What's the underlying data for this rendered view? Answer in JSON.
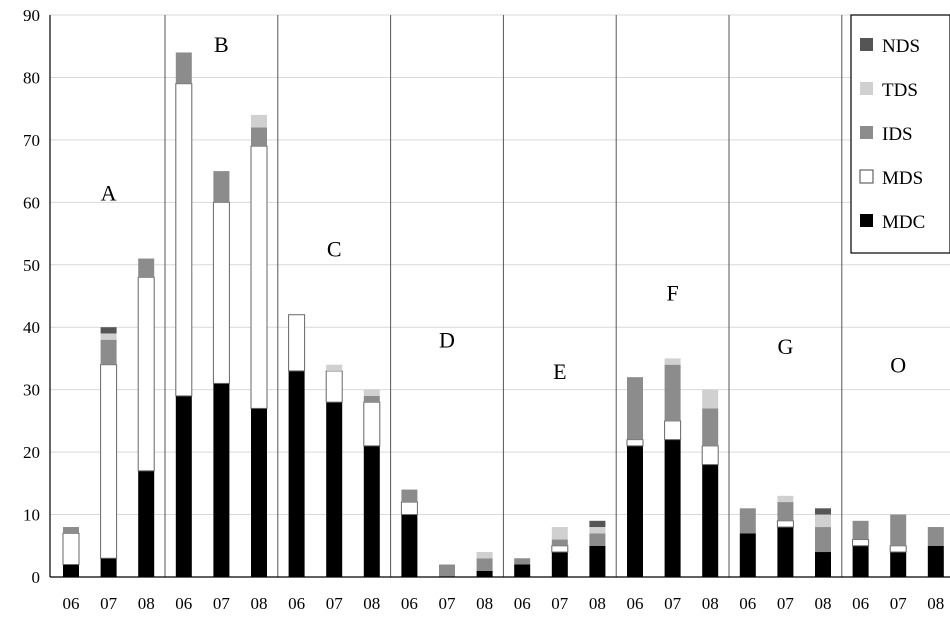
{
  "chart_data": {
    "type": "bar",
    "stacked": true,
    "title": "",
    "xlabel": "",
    "ylabel": "",
    "ylim": [
      0,
      90
    ],
    "yticks": [
      0,
      10,
      20,
      30,
      40,
      50,
      60,
      70,
      80,
      90
    ],
    "grid": "horizontal, light",
    "legend_position": "top-right",
    "series": [
      {
        "name": "MDC",
        "color": "#000000"
      },
      {
        "name": "MDS",
        "color": "#ffffff"
      },
      {
        "name": "IDS",
        "color": "#8c8c8c"
      },
      {
        "name": "TDS",
        "color": "#d0d0d0"
      },
      {
        "name": "NDS",
        "color": "#555555"
      }
    ],
    "legend_order": [
      "NDS",
      "TDS",
      "IDS",
      "MDS",
      "MDC"
    ],
    "groups": [
      {
        "label": "A",
        "bars": [
          {
            "year": "06",
            "MDC": 2,
            "MDS": 5,
            "IDS": 1,
            "TDS": 0,
            "NDS": 0
          },
          {
            "year": "07",
            "MDC": 3,
            "MDS": 31,
            "IDS": 4,
            "TDS": 1,
            "NDS": 1
          },
          {
            "year": "08",
            "MDC": 17,
            "MDS": 31,
            "IDS": 3,
            "TDS": 0,
            "NDS": 0
          }
        ]
      },
      {
        "label": "B",
        "bars": [
          {
            "year": "06",
            "MDC": 29,
            "MDS": 50,
            "IDS": 5,
            "TDS": 0,
            "NDS": 0
          },
          {
            "year": "07",
            "MDC": 31,
            "MDS": 29,
            "IDS": 5,
            "TDS": 0,
            "NDS": 0
          },
          {
            "year": "08",
            "MDC": 27,
            "MDS": 42,
            "IDS": 3,
            "TDS": 2,
            "NDS": 0
          }
        ]
      },
      {
        "label": "C",
        "bars": [
          {
            "year": "06",
            "MDC": 33,
            "MDS": 9,
            "IDS": 0,
            "TDS": 0,
            "NDS": 0
          },
          {
            "year": "07",
            "MDC": 28,
            "MDS": 5,
            "IDS": 0,
            "TDS": 1,
            "NDS": 0
          },
          {
            "year": "08",
            "MDC": 21,
            "MDS": 7,
            "IDS": 1,
            "TDS": 1,
            "NDS": 0
          }
        ]
      },
      {
        "label": "D",
        "bars": [
          {
            "year": "06",
            "MDC": 10,
            "MDS": 2,
            "IDS": 2,
            "TDS": 0,
            "NDS": 0
          },
          {
            "year": "07",
            "MDC": 0,
            "MDS": 0,
            "IDS": 2,
            "TDS": 0,
            "NDS": 0
          },
          {
            "year": "08",
            "MDC": 1,
            "MDS": 0,
            "IDS": 2,
            "TDS": 1,
            "NDS": 0
          }
        ]
      },
      {
        "label": "E",
        "bars": [
          {
            "year": "06",
            "MDC": 2,
            "MDS": 0,
            "IDS": 1,
            "TDS": 0,
            "NDS": 0
          },
          {
            "year": "07",
            "MDC": 4,
            "MDS": 1,
            "IDS": 1,
            "TDS": 2,
            "NDS": 0
          },
          {
            "year": "08",
            "MDC": 5,
            "MDS": 0,
            "IDS": 2,
            "TDS": 1,
            "NDS": 1
          }
        ]
      },
      {
        "label": "F",
        "bars": [
          {
            "year": "06",
            "MDC": 21,
            "MDS": 1,
            "IDS": 10,
            "TDS": 0,
            "NDS": 0
          },
          {
            "year": "07",
            "MDC": 22,
            "MDS": 3,
            "IDS": 9,
            "TDS": 1,
            "NDS": 0
          },
          {
            "year": "08",
            "MDC": 18,
            "MDS": 3,
            "IDS": 6,
            "TDS": 3,
            "NDS": 0
          }
        ]
      },
      {
        "label": "G",
        "bars": [
          {
            "year": "06",
            "MDC": 7,
            "MDS": 0,
            "IDS": 4,
            "TDS": 0,
            "NDS": 0
          },
          {
            "year": "07",
            "MDC": 8,
            "MDS": 1,
            "IDS": 3,
            "TDS": 1,
            "NDS": 0
          },
          {
            "year": "08",
            "MDC": 4,
            "MDS": 0,
            "IDS": 4,
            "TDS": 2,
            "NDS": 1
          }
        ]
      },
      {
        "label": "O",
        "bars": [
          {
            "year": "06",
            "MDC": 5,
            "MDS": 1,
            "IDS": 3,
            "TDS": 0,
            "NDS": 0
          },
          {
            "year": "07",
            "MDC": 4,
            "MDS": 1,
            "IDS": 5,
            "TDS": 0,
            "NDS": 0
          },
          {
            "year": "08",
            "MDC": 5,
            "MDS": 0,
            "IDS": 3,
            "TDS": 0,
            "NDS": 0
          }
        ]
      }
    ]
  }
}
